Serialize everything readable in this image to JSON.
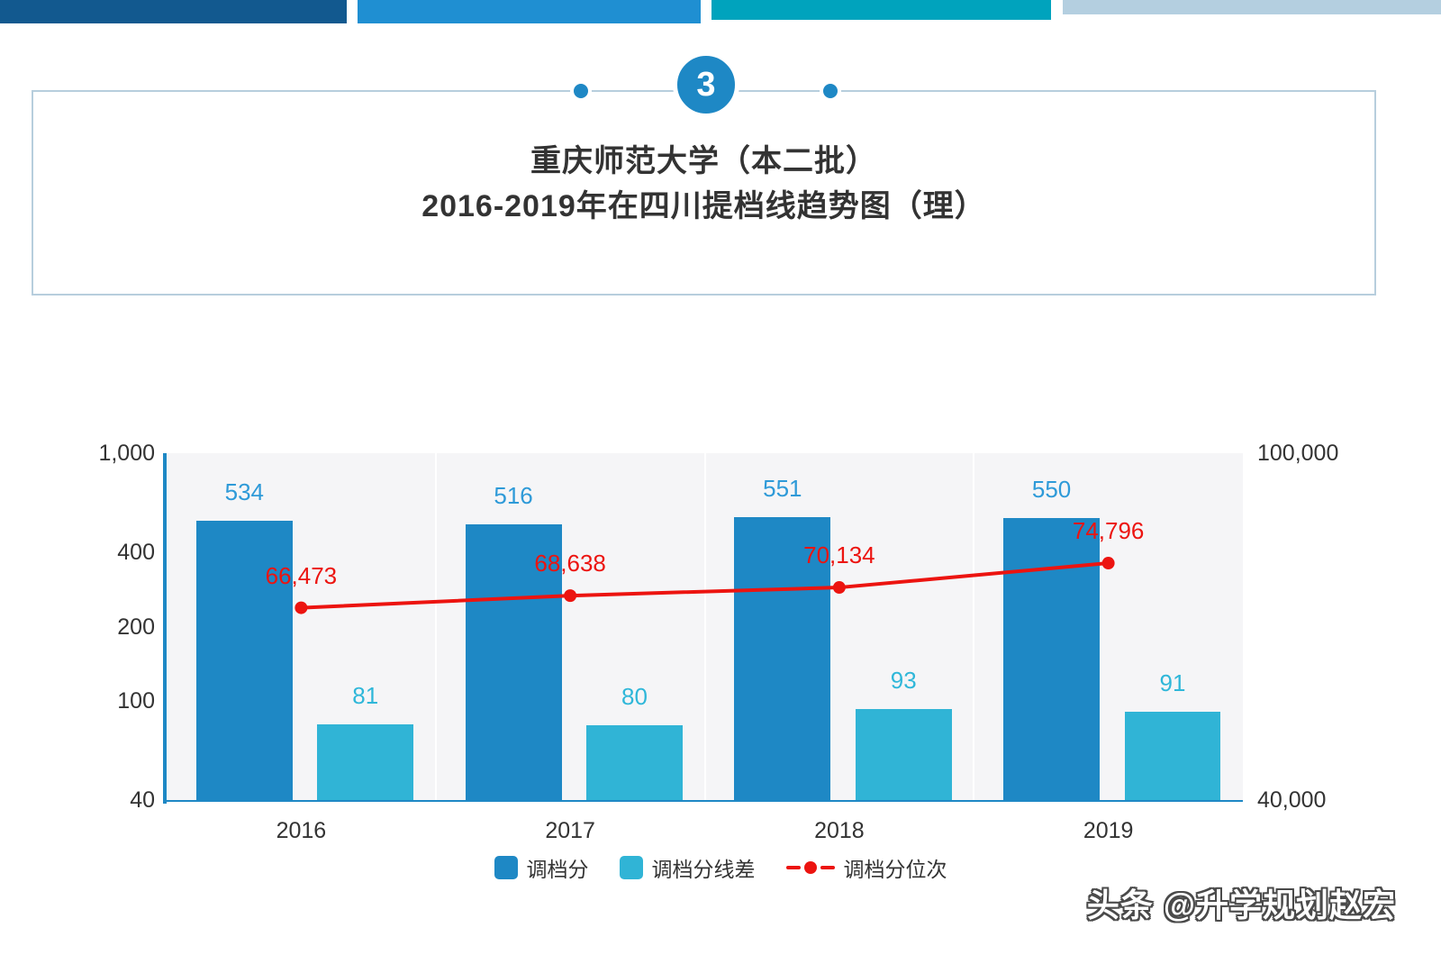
{
  "page": {
    "watermark": "头条 @升学规划赵宏"
  },
  "header": {
    "badge_number": "3",
    "title_line1": "重庆师范大学（本二批）",
    "title_line2": "2016-2019年在四川提档线趋势图（理）"
  },
  "chart_data": {
    "type": "bar",
    "subtype": "grouped bars + line, dual logarithmic axes",
    "title": "重庆师范大学（本二批）2016-2019年在四川提档线趋势图（理）",
    "categories": [
      "2016",
      "2017",
      "2018",
      "2019"
    ],
    "series": [
      {
        "key": "admission-score",
        "name": "调档分",
        "type": "bar",
        "axis": "left",
        "color": "#1e88c5",
        "label_color": "#2e9ad8",
        "values": [
          534,
          516,
          551,
          550
        ],
        "labels": [
          "534",
          "516",
          "551",
          "550"
        ]
      },
      {
        "key": "score-margin",
        "name": "调档分线差",
        "type": "bar",
        "axis": "left",
        "color": "#30b4d6",
        "label_color": "#2fb7d9",
        "values": [
          81,
          80,
          93,
          91
        ],
        "labels": [
          "81",
          "80",
          "93",
          "91"
        ]
      },
      {
        "key": "score-rank",
        "name": "调档分位次",
        "type": "line",
        "axis": "right",
        "color": "#ec1410",
        "label_color": "#ec1410",
        "values": [
          66473,
          68638,
          70134,
          74796
        ],
        "labels": [
          "66,473",
          "68,638",
          "70,134",
          "74,796"
        ]
      }
    ],
    "left_axis": {
      "scale": "log",
      "min": 40,
      "max": 1000,
      "ticks": [
        {
          "value": 1000,
          "label": "1,000"
        },
        {
          "value": 400,
          "label": "400"
        },
        {
          "value": 200,
          "label": "200"
        },
        {
          "value": 100,
          "label": "100"
        },
        {
          "value": 40,
          "label": "40"
        }
      ]
    },
    "right_axis": {
      "scale": "log",
      "min": 40000,
      "max": 100000,
      "ticks": [
        {
          "value": 100000,
          "label": "100,000"
        },
        {
          "value": 40000,
          "label": "40,000"
        }
      ]
    },
    "legend": [
      {
        "label": "调档分",
        "swatch": "square",
        "color": "#1e88c5"
      },
      {
        "label": "调档分线差",
        "swatch": "square",
        "color": "#30b4d6"
      },
      {
        "label": "调档分位次",
        "swatch": "line-dot",
        "color": "#ec1410"
      }
    ],
    "grid": "vertical white separators between year groups",
    "plot_background": "#f5f5f7",
    "axis_line_color": "#1e88c5"
  }
}
